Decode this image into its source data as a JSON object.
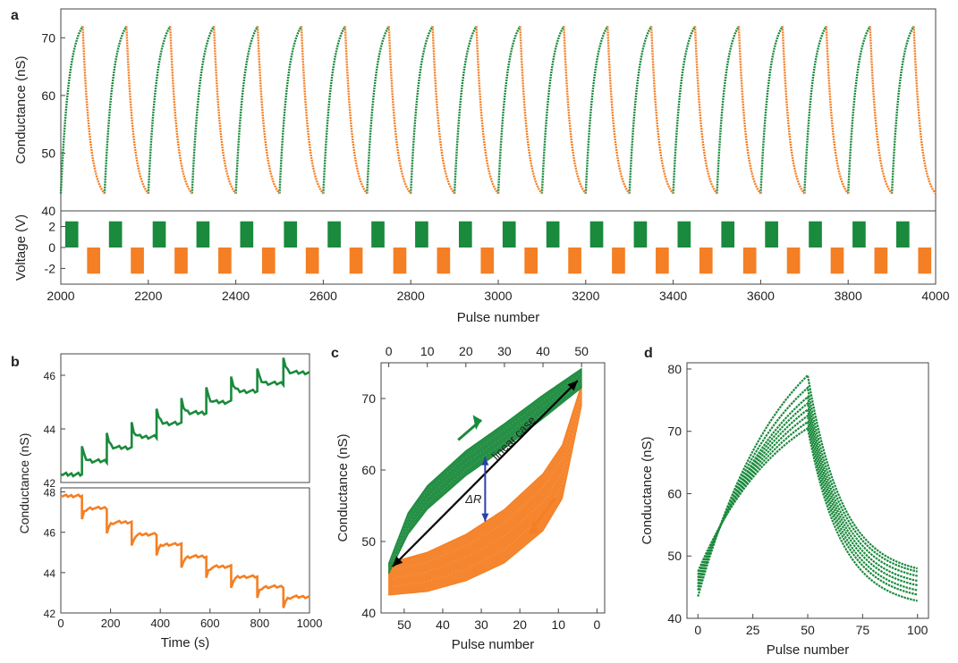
{
  "colors": {
    "green": "#1a8a3c",
    "orange": "#f47f24",
    "blue": "#2c3fa8",
    "axis": "#444444"
  },
  "chart_data": [
    {
      "id": "a",
      "panel_label": "a",
      "type": "line",
      "xlabel": "Pulse number",
      "ylabel_top": "Conductance (nS)",
      "ylabel_bottom": "Voltage (V)",
      "xlim": [
        2000,
        4000
      ],
      "xticks": [
        2000,
        2200,
        2400,
        2600,
        2800,
        3000,
        3200,
        3400,
        3600,
        3800,
        4000
      ],
      "ylim_top": [
        40,
        75
      ],
      "yticks_top": [
        40,
        50,
        60,
        70
      ],
      "ylim_bottom": [
        -3.5,
        3.5
      ],
      "yticks_bottom": [
        -2,
        0,
        2
      ],
      "cycle_length": 100,
      "pulses_per_phase": 50,
      "potentiation_range_nS": [
        43,
        72
      ],
      "depression_range_nS": [
        72,
        43
      ],
      "voltage_levels_V": {
        "potentiation": 2.5,
        "depression": -2.5
      },
      "series": [
        {
          "color": "green"
        },
        {
          "color": "orange"
        }
      ]
    },
    {
      "id": "b",
      "panel_label": "b",
      "type": "line",
      "xlabel": "Time (s)",
      "ylabel": "Conductance (nS)",
      "xlim": [
        0,
        1000
      ],
      "xticks": [
        0,
        200,
        400,
        600,
        800,
        1000
      ],
      "subplots": [
        {
          "ylim": [
            42,
            46.8
          ],
          "yticks": [
            42,
            44,
            46
          ],
          "color": "green",
          "step_times": [
            0,
            85,
            185,
            285,
            385,
            485,
            585,
            685,
            790,
            895
          ],
          "step_levels": [
            42.3,
            42.8,
            43.3,
            43.7,
            44.2,
            44.6,
            45.0,
            45.4,
            45.7,
            46.1
          ]
        },
        {
          "ylim": [
            42,
            48.2
          ],
          "yticks": [
            42,
            44,
            46,
            48
          ],
          "color": "orange",
          "step_times": [
            0,
            85,
            185,
            285,
            385,
            485,
            585,
            685,
            790,
            895
          ],
          "step_levels": [
            47.8,
            47.2,
            46.5,
            45.9,
            45.4,
            44.8,
            44.3,
            43.8,
            43.3,
            42.8
          ]
        }
      ]
    },
    {
      "id": "c",
      "panel_label": "c",
      "type": "line",
      "xlabel": "Pulse number",
      "ylabel": "Conductance (nS)",
      "xlim_bottom": [
        56,
        -2
      ],
      "xticks_bottom": [
        50,
        40,
        30,
        20,
        10,
        0
      ],
      "xlim_top": [
        -2,
        56
      ],
      "xticks_top": [
        0,
        10,
        20,
        30,
        40,
        50
      ],
      "ylim": [
        40,
        75
      ],
      "yticks": [
        40,
        50,
        60,
        70
      ],
      "annotations": {
        "linear_case": "linear case",
        "delta_label": "ΔR"
      },
      "band_curves": {
        "green_upper": [
          [
            0,
            47
          ],
          [
            5,
            54
          ],
          [
            10,
            57.8
          ],
          [
            20,
            62.7
          ],
          [
            30,
            66.5
          ],
          [
            40,
            70.5
          ],
          [
            50,
            74.2
          ]
        ],
        "green_lower": [
          [
            0,
            45.5
          ],
          [
            5,
            51
          ],
          [
            10,
            54.5
          ],
          [
            20,
            59.2
          ],
          [
            30,
            63
          ],
          [
            40,
            67.2
          ],
          [
            50,
            71.5
          ]
        ],
        "orange_upper": [
          [
            0,
            47
          ],
          [
            10,
            48.5
          ],
          [
            20,
            51
          ],
          [
            30,
            54.5
          ],
          [
            40,
            59.5
          ],
          [
            45,
            63.5
          ],
          [
            50,
            72
          ]
        ],
        "orange_lower": [
          [
            0,
            42.5
          ],
          [
            10,
            43
          ],
          [
            20,
            44.5
          ],
          [
            30,
            47
          ],
          [
            40,
            51.5
          ],
          [
            45,
            56
          ],
          [
            50,
            69
          ]
        ]
      },
      "linear_line": [
        [
          1,
          46.5
        ],
        [
          49,
          72.5
        ]
      ],
      "delta_arrow": {
        "pulse": 25,
        "y_low": 52.8,
        "y_high": 61.8
      }
    },
    {
      "id": "d",
      "panel_label": "d",
      "type": "line",
      "xlabel": "Pulse number",
      "ylabel": "Conductance (nS)",
      "xlim": [
        -5,
        105
      ],
      "xticks": [
        0,
        25,
        50,
        75,
        100
      ],
      "ylim": [
        40,
        81
      ],
      "yticks": [
        40,
        50,
        60,
        70,
        80
      ],
      "color": "green",
      "curves": [
        {
          "start": 43.5,
          "peak": 79,
          "end": 48
        },
        {
          "start": 44.5,
          "peak": 77,
          "end": 47.5
        },
        {
          "start": 45,
          "peak": 75.5,
          "end": 46.8
        },
        {
          "start": 45.5,
          "peak": 74.5,
          "end": 46
        },
        {
          "start": 46,
          "peak": 73.5,
          "end": 45.3
        },
        {
          "start": 46.5,
          "peak": 72.5,
          "end": 44.5
        },
        {
          "start": 47,
          "peak": 71.5,
          "end": 43.8
        },
        {
          "start": 47.5,
          "peak": 70.5,
          "end": 42.8
        }
      ]
    }
  ]
}
